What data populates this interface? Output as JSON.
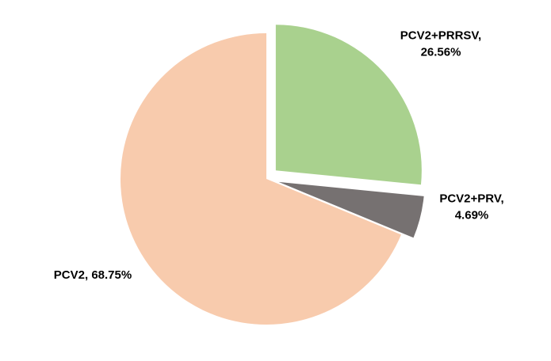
{
  "chart_data": {
    "type": "pie",
    "title": "",
    "start_angle_deg": 0,
    "direction": "clockwise",
    "legend": "none",
    "series": [
      {
        "values": [
          26.56,
          4.69,
          68.75
        ],
        "categories": [
          "PCV2+PRRSV",
          "PCV2+PRV",
          "PCV2"
        ],
        "labels": [
          [
            "PCV2+PRRSV,",
            "26.56%"
          ],
          [
            "PCV2+PRV,",
            "4.69%"
          ],
          [
            "PCV2, 68.75%"
          ]
        ],
        "colors": [
          "#a9d18e",
          "#767171",
          "#f8cbad"
        ],
        "exploded": [
          true,
          true,
          false
        ]
      }
    ]
  }
}
